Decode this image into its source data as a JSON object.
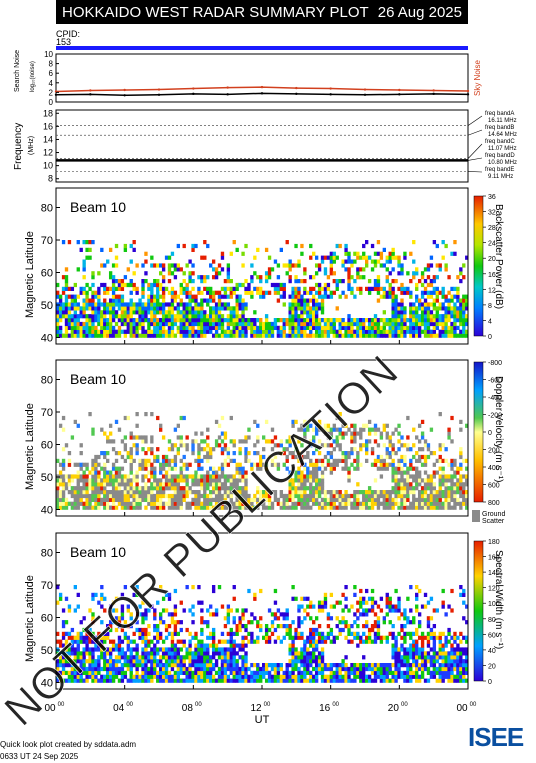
{
  "header": {
    "title": "HOKKAIDO WEST RADAR SUMMARY PLOT",
    "date": "26 Aug 2025"
  },
  "cpid": {
    "label": "CPID:",
    "value": "153"
  },
  "colors": {
    "cpid_bar": "#1a1aff",
    "noise_search": "#000000",
    "noise_sky": "#d2401e",
    "freq_line": "#000000",
    "ground_scatter": "#8a8a8a"
  },
  "noise_panel": {
    "ylabel": "Search Noise",
    "ylabel_sub": "log₁₀(noise)",
    "right_label": "Sky Noise",
    "yticks": [
      "0",
      "2",
      "4",
      "6",
      "8",
      "10"
    ],
    "ylim": [
      0,
      10
    ]
  },
  "freq_panel": {
    "ylabel": "Frequency",
    "ylabel_unit": "(MHz)",
    "yticks": [
      "8",
      "10",
      "12",
      "14",
      "16",
      "18"
    ],
    "ylim": [
      7.5,
      18.5
    ],
    "bands": [
      {
        "name": "freq bandA",
        "value": "16.11 MHz"
      },
      {
        "name": "freq bandB",
        "value": "14.64 MHz"
      },
      {
        "name": "freq bandC",
        "value": "11.07 MHz"
      },
      {
        "name": "freq bandD",
        "value": "10.80 MHz"
      },
      {
        "name": "freq bandE",
        "value": "9.11 MHz"
      }
    ]
  },
  "chart_data": [
    {
      "type": "line",
      "series": [
        {
          "name": "Search Noise",
          "x": [
            0,
            2,
            4,
            6,
            8,
            10,
            12,
            14,
            16,
            18,
            20,
            22,
            24
          ],
          "values": [
            1.5,
            1.6,
            1.4,
            1.5,
            1.7,
            1.6,
            1.8,
            1.7,
            1.6,
            1.5,
            1.6,
            1.7,
            1.6
          ]
        },
        {
          "name": "Sky Noise",
          "x": [
            0,
            2,
            4,
            6,
            8,
            10,
            12,
            14,
            16,
            18,
            20,
            22,
            24
          ],
          "values": [
            2.2,
            2.4,
            2.5,
            2.6,
            2.8,
            3.0,
            3.1,
            2.9,
            2.8,
            2.6,
            2.5,
            2.4,
            2.3
          ]
        }
      ],
      "ylim": [
        0,
        10
      ]
    },
    {
      "type": "line",
      "series": [
        {
          "name": "Frequency",
          "x": [
            0,
            24
          ],
          "values": [
            10.8,
            10.8
          ]
        }
      ],
      "ylim": [
        7.5,
        18.5
      ]
    },
    {
      "type": "heatmap",
      "title": "Beam 10",
      "ylabel": "Magnetic Latitude",
      "colorbar_label": "Backscatter Power (dB)",
      "colorbar_ticks": [
        "0",
        "4",
        "8",
        "12",
        "16",
        "20",
        "24",
        "28",
        "32",
        "36"
      ],
      "yticks": [
        "40",
        "50",
        "60",
        "70",
        "80"
      ],
      "ylim": [
        38,
        86
      ]
    },
    {
      "type": "heatmap",
      "title": "Beam 10",
      "ylabel": "Magnetic Latitude",
      "colorbar_label": "Doppler Velocity (m s⁻¹)",
      "colorbar_ticks": [
        "-800",
        "-600",
        "-400",
        "-200",
        "0",
        "200",
        "400",
        "600",
        "800"
      ],
      "ground_label": [
        "Ground",
        "Scatter"
      ],
      "yticks": [
        "40",
        "50",
        "60",
        "70",
        "80"
      ],
      "ylim": [
        38,
        86
      ]
    },
    {
      "type": "heatmap",
      "title": "Beam 10",
      "ylabel": "Magnetic Latitude",
      "colorbar_label": "Spectral Width (m s⁻¹)",
      "colorbar_ticks": [
        "0",
        "20",
        "40",
        "60",
        "80",
        "100",
        "120",
        "140",
        "160",
        "180"
      ],
      "yticks": [
        "40",
        "50",
        "60",
        "70",
        "80"
      ],
      "ylim": [
        38,
        86
      ]
    }
  ],
  "xaxis": {
    "ticks": [
      "00",
      "04",
      "08",
      "12",
      "16",
      "20",
      "00"
    ],
    "tick_sup": "00",
    "label": "UT",
    "xlim": [
      0,
      24
    ]
  },
  "watermark": "NOT FOR PUBLICATION",
  "footer": {
    "line1": "Quick look plot created by sddata.adm",
    "line2": "0633 UT 24 Sep 2025",
    "logo": "ISEE"
  }
}
